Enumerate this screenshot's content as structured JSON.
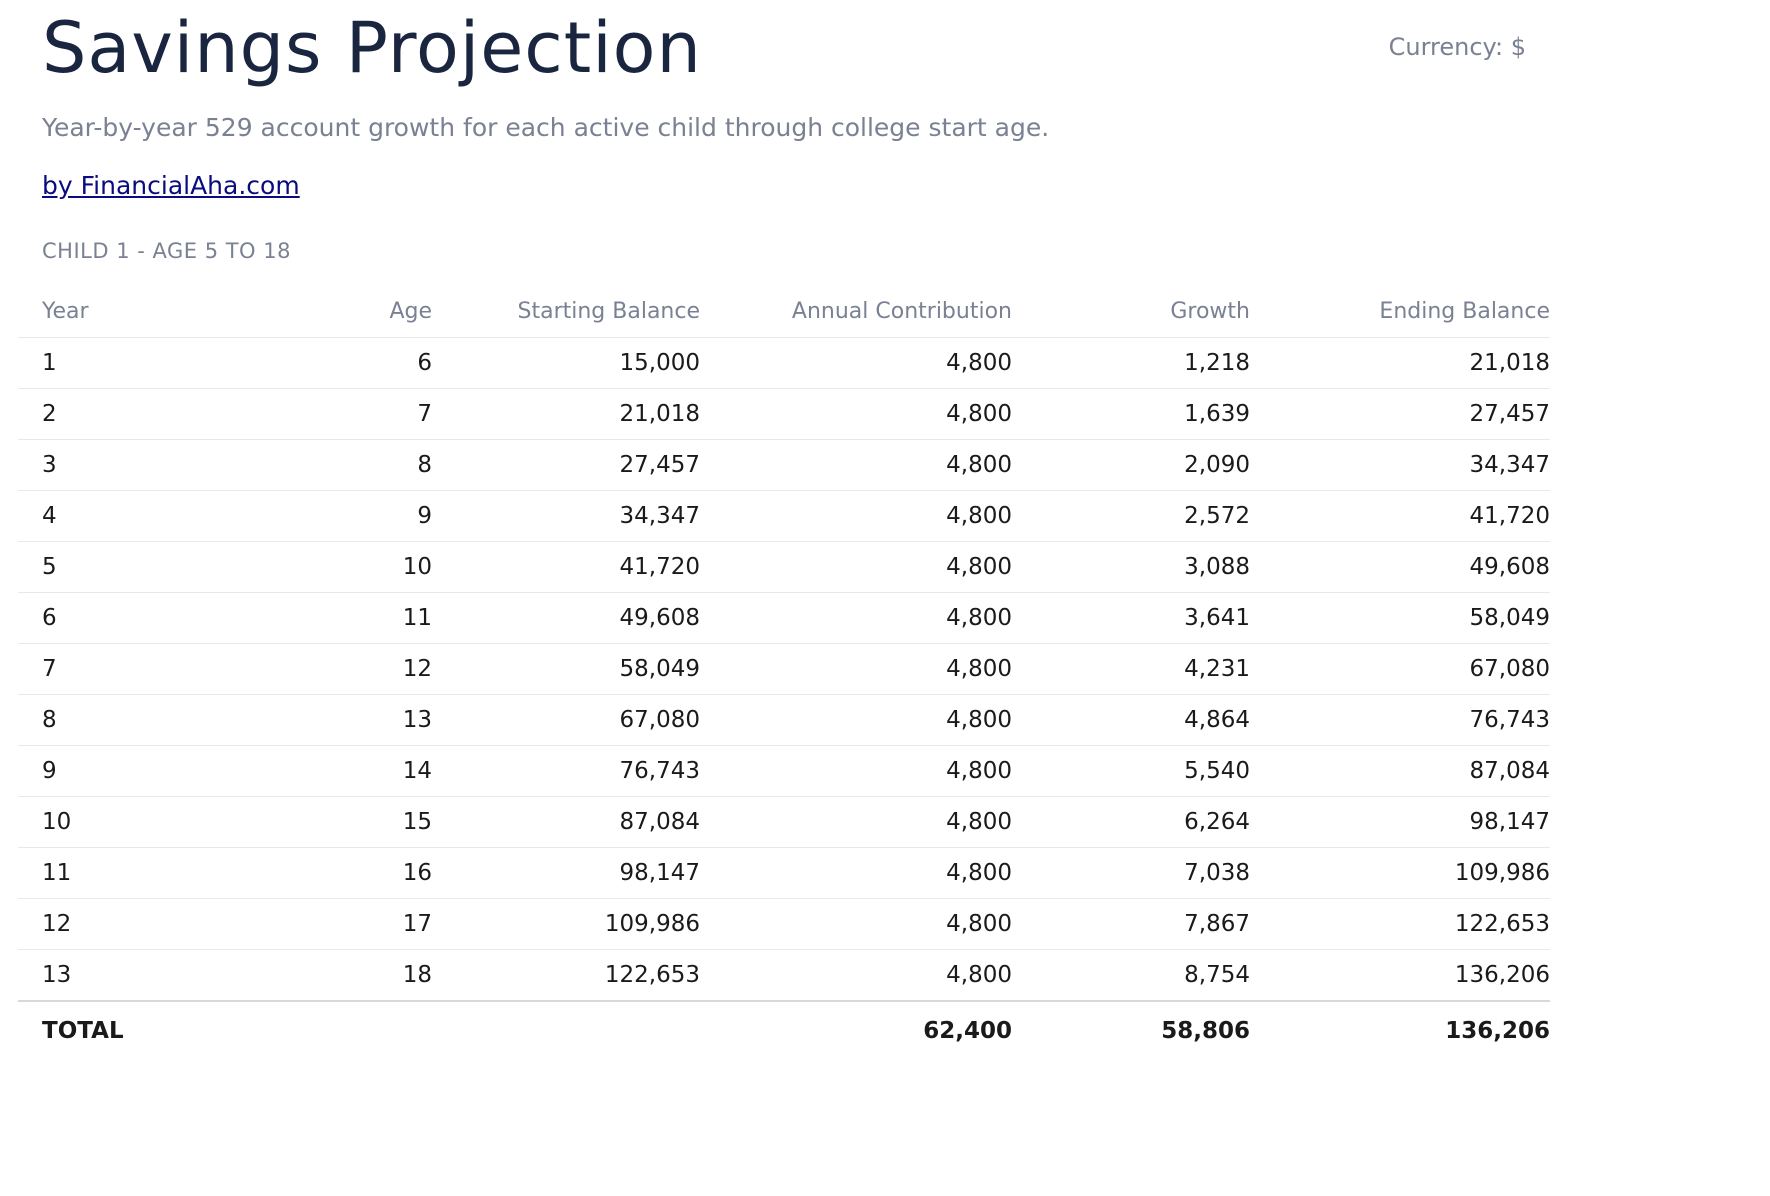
{
  "header": {
    "title": "Savings Projection",
    "currency": "Currency: $",
    "subtitle": "Year-by-year 529 account growth for each active child through college start age.",
    "attribution": "by FinancialAha.com"
  },
  "section": {
    "heading": "CHILD 1 - AGE 5 TO 18"
  },
  "table": {
    "columns": [
      "Year",
      "Age",
      "Starting Balance",
      "Annual Contribution",
      "Growth",
      "Ending Balance"
    ],
    "rows": [
      [
        "1",
        "6",
        "15,000",
        "4,800",
        "1,218",
        "21,018"
      ],
      [
        "2",
        "7",
        "21,018",
        "4,800",
        "1,639",
        "27,457"
      ],
      [
        "3",
        "8",
        "27,457",
        "4,800",
        "2,090",
        "34,347"
      ],
      [
        "4",
        "9",
        "34,347",
        "4,800",
        "2,572",
        "41,720"
      ],
      [
        "5",
        "10",
        "41,720",
        "4,800",
        "3,088",
        "49,608"
      ],
      [
        "6",
        "11",
        "49,608",
        "4,800",
        "3,641",
        "58,049"
      ],
      [
        "7",
        "12",
        "58,049",
        "4,800",
        "4,231",
        "67,080"
      ],
      [
        "8",
        "13",
        "67,080",
        "4,800",
        "4,864",
        "76,743"
      ],
      [
        "9",
        "14",
        "76,743",
        "4,800",
        "5,540",
        "87,084"
      ],
      [
        "10",
        "15",
        "87,084",
        "4,800",
        "6,264",
        "98,147"
      ],
      [
        "11",
        "16",
        "98,147",
        "4,800",
        "7,038",
        "109,986"
      ],
      [
        "12",
        "17",
        "109,986",
        "4,800",
        "7,867",
        "122,653"
      ],
      [
        "13",
        "18",
        "122,653",
        "4,800",
        "8,754",
        "136,206"
      ]
    ],
    "total": {
      "label": "TOTAL",
      "age": "",
      "starting_balance": "",
      "annual_contribution": "62,400",
      "growth": "58,806",
      "ending_balance": "136,206"
    }
  },
  "colors": {
    "title": "#1a2540",
    "muted": "#7a8193",
    "link": "#0b0b80",
    "text": "#1a1a1a",
    "divider": "#e6e8ec"
  }
}
